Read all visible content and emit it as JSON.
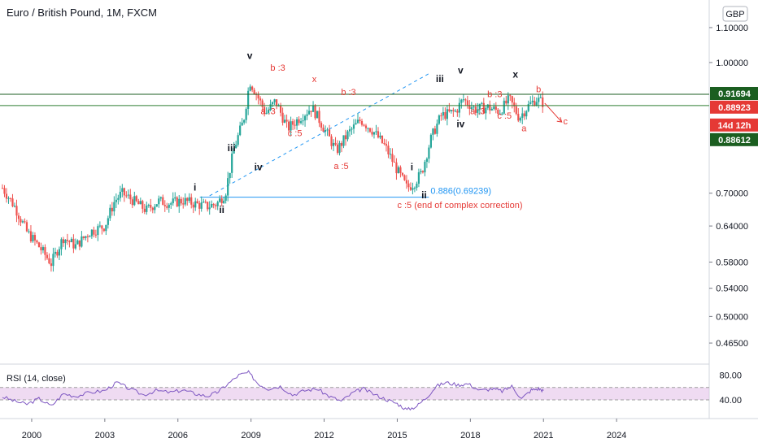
{
  "header": {
    "title": "Euro / British Pound, 1M, FXCM",
    "currency_badge": "GBP"
  },
  "chart_data": {
    "type": "candlestick",
    "title": "Euro / British Pound, 1M, FXCM",
    "x_range": [
      1998.7,
      2027.8
    ],
    "y_scale": "log",
    "y_range": [
      0.44,
      1.16
    ],
    "x_ticks": [
      {
        "label": "2000",
        "value": 2000
      },
      {
        "label": "2003",
        "value": 2003
      },
      {
        "label": "2006",
        "value": 2006
      },
      {
        "label": "2009",
        "value": 2009
      },
      {
        "label": "2012",
        "value": 2012
      },
      {
        "label": "2015",
        "value": 2015
      },
      {
        "label": "2018",
        "value": 2018
      },
      {
        "label": "2021",
        "value": 2021
      },
      {
        "label": "2024",
        "value": 2024
      }
    ],
    "y_ticks": [
      {
        "label": "1.10000",
        "value": 1.1
      },
      {
        "label": "1.00000",
        "value": 1.0
      },
      {
        "label": "0.70000",
        "value": 0.7
      },
      {
        "label": "0.64000",
        "value": 0.64
      },
      {
        "label": "0.58000",
        "value": 0.58
      },
      {
        "label": "0.54000",
        "value": 0.54
      },
      {
        "label": "0.50000",
        "value": 0.5
      },
      {
        "label": "0.46500",
        "value": 0.465
      }
    ],
    "price_path": [
      [
        1998.8,
        0.71
      ],
      [
        1999.3,
        0.675
      ],
      [
        1999.8,
        0.63
      ],
      [
        2000.3,
        0.605
      ],
      [
        2000.8,
        0.578
      ],
      [
        2001.3,
        0.62
      ],
      [
        2001.8,
        0.606
      ],
      [
        2002.4,
        0.63
      ],
      [
        2003.0,
        0.64
      ],
      [
        2003.4,
        0.685
      ],
      [
        2003.7,
        0.7
      ],
      [
        2004.2,
        0.685
      ],
      [
        2004.7,
        0.668
      ],
      [
        2005.2,
        0.685
      ],
      [
        2005.7,
        0.681
      ],
      [
        2006.2,
        0.686
      ],
      [
        2006.7,
        0.68
      ],
      [
        2007.2,
        0.675
      ],
      [
        2007.6,
        0.68
      ],
      [
        2007.95,
        0.7
      ],
      [
        2008.3,
        0.79
      ],
      [
        2008.7,
        0.855
      ],
      [
        2008.95,
        0.95
      ],
      [
        2009.2,
        0.92
      ],
      [
        2009.6,
        0.87
      ],
      [
        2010.0,
        0.9
      ],
      [
        2010.5,
        0.835
      ],
      [
        2011.0,
        0.86
      ],
      [
        2011.5,
        0.885
      ],
      [
        2012.0,
        0.835
      ],
      [
        2012.5,
        0.785
      ],
      [
        2013.0,
        0.825
      ],
      [
        2013.5,
        0.855
      ],
      [
        2014.0,
        0.83
      ],
      [
        2014.5,
        0.795
      ],
      [
        2015.0,
        0.745
      ],
      [
        2015.4,
        0.71
      ],
      [
        2015.7,
        0.72
      ],
      [
        2016.0,
        0.74
      ],
      [
        2016.4,
        0.815
      ],
      [
        2016.8,
        0.865
      ],
      [
        2017.4,
        0.875
      ],
      [
        2017.7,
        0.905
      ],
      [
        2018.2,
        0.88
      ],
      [
        2018.7,
        0.885
      ],
      [
        2019.2,
        0.875
      ],
      [
        2019.6,
        0.905
      ],
      [
        2020.0,
        0.86
      ],
      [
        2020.4,
        0.89
      ],
      [
        2020.7,
        0.905
      ],
      [
        2021.0,
        0.895
      ]
    ],
    "horizontal_levels": [
      {
        "value": 0.91694,
        "label": "0.91694",
        "color": "#1b5e20"
      },
      {
        "value": 0.88923,
        "label": "0.88923",
        "color": "#2e7d32"
      },
      {
        "value": 0.88612,
        "label": "0.88612",
        "color": "#1b5e20"
      }
    ],
    "countdown_label": "14d 12h",
    "fib_line": {
      "value": 0.69239,
      "x_start": 2006.9,
      "x_end": 2016.3,
      "label": "0.886(0.69239)",
      "color": "#2196f3"
    },
    "trendline": {
      "x_start": 2007.3,
      "y_start": 0.695,
      "x_end": 2016.3,
      "y_end": 0.97,
      "color": "#2196f3"
    },
    "wave_labels": [
      {
        "text": "v",
        "x": 2008.95,
        "y": 1.01,
        "color": "black"
      },
      {
        "text": "iii",
        "x": 2008.2,
        "y": 0.785,
        "color": "black"
      },
      {
        "text": "iv",
        "x": 2009.3,
        "y": 0.745,
        "color": "black"
      },
      {
        "text": "i",
        "x": 2006.7,
        "y": 0.705,
        "color": "black"
      },
      {
        "text": "ii",
        "x": 2007.8,
        "y": 0.663,
        "color": "black"
      },
      {
        "text": "b :3",
        "x": 2010.1,
        "y": 0.978,
        "color": "red"
      },
      {
        "text": "x",
        "x": 2011.6,
        "y": 0.948,
        "color": "red"
      },
      {
        "text": "a :3",
        "x": 2009.7,
        "y": 0.868,
        "color": "red"
      },
      {
        "text": "c :5",
        "x": 2010.8,
        "y": 0.818,
        "color": "red"
      },
      {
        "text": "b :3",
        "x": 2013.0,
        "y": 0.915,
        "color": "red"
      },
      {
        "text": "a :5",
        "x": 2012.7,
        "y": 0.748,
        "color": "red"
      },
      {
        "text": "iii",
        "x": 2016.75,
        "y": 0.948,
        "color": "black"
      },
      {
        "text": "v",
        "x": 2017.6,
        "y": 0.97,
        "color": "black"
      },
      {
        "text": "iv",
        "x": 2017.6,
        "y": 0.838,
        "color": "black"
      },
      {
        "text": "i",
        "x": 2015.6,
        "y": 0.745,
        "color": "black"
      },
      {
        "text": "ii",
        "x": 2016.1,
        "y": 0.69,
        "color": "black"
      },
      {
        "text": "a :3",
        "x": 2018.3,
        "y": 0.868,
        "color": "red"
      },
      {
        "text": "b :3",
        "x": 2019.0,
        "y": 0.91,
        "color": "red"
      },
      {
        "text": "c :5",
        "x": 2019.4,
        "y": 0.858,
        "color": "red"
      },
      {
        "text": "x",
        "x": 2019.85,
        "y": 0.96,
        "color": "black"
      },
      {
        "text": "a",
        "x": 2020.2,
        "y": 0.829,
        "color": "red"
      },
      {
        "text": "b",
        "x": 2020.8,
        "y": 0.922,
        "color": "red"
      },
      {
        "text": "c",
        "x": 2021.9,
        "y": 0.845,
        "color": "red"
      }
    ],
    "annotation": "c :5 (end of complex correction)",
    "rsi": {
      "label": "RSI (14, close)",
      "band": [
        40,
        60
      ],
      "ticks": [
        {
          "label": "80.00",
          "value": 80
        },
        {
          "label": "40.00",
          "value": 40
        }
      ],
      "values": [
        [
          1998.8,
          45
        ],
        [
          1999.3,
          38
        ],
        [
          1999.8,
          33
        ],
        [
          2000.3,
          42
        ],
        [
          2000.8,
          30
        ],
        [
          2001.3,
          50
        ],
        [
          2001.8,
          46
        ],
        [
          2002.4,
          52
        ],
        [
          2003.0,
          55
        ],
        [
          2003.5,
          68
        ],
        [
          2004.0,
          58
        ],
        [
          2004.6,
          48
        ],
        [
          2005.1,
          55
        ],
        [
          2005.7,
          52
        ],
        [
          2006.2,
          56
        ],
        [
          2006.7,
          50
        ],
        [
          2007.2,
          46
        ],
        [
          2007.6,
          52
        ],
        [
          2008.0,
          64
        ],
        [
          2008.5,
          80
        ],
        [
          2008.9,
          84
        ],
        [
          2009.3,
          66
        ],
        [
          2009.7,
          58
        ],
        [
          2010.2,
          62
        ],
        [
          2010.7,
          48
        ],
        [
          2011.2,
          55
        ],
        [
          2011.7,
          58
        ],
        [
          2012.2,
          46
        ],
        [
          2012.7,
          38
        ],
        [
          2013.2,
          52
        ],
        [
          2013.6,
          58
        ],
        [
          2014.1,
          48
        ],
        [
          2014.6,
          40
        ],
        [
          2015.0,
          34
        ],
        [
          2015.4,
          24
        ],
        [
          2015.8,
          30
        ],
        [
          2016.2,
          44
        ],
        [
          2016.6,
          62
        ],
        [
          2017.0,
          68
        ],
        [
          2017.5,
          64
        ],
        [
          2017.9,
          66
        ],
        [
          2018.4,
          55
        ],
        [
          2018.9,
          58
        ],
        [
          2019.3,
          54
        ],
        [
          2019.7,
          62
        ],
        [
          2020.1,
          42
        ],
        [
          2020.5,
          56
        ],
        [
          2020.8,
          58
        ],
        [
          2021.0,
          55
        ]
      ]
    }
  }
}
